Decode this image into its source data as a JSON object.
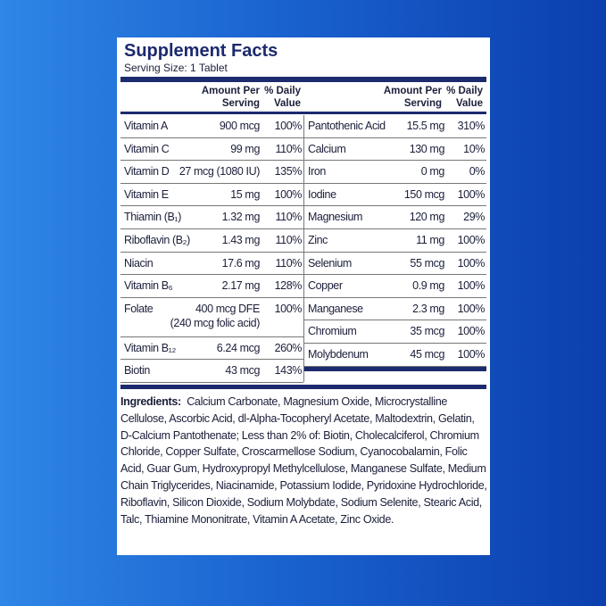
{
  "label": {
    "title": "Supplement Facts",
    "serving_size": "Serving Size: 1 Tablet",
    "header": {
      "amount": "Amount Per Serving",
      "daily_value": "% Daily Value"
    },
    "left_rows": [
      {
        "name": "Vitamin A",
        "amount": "900 mcg",
        "dv": "100%"
      },
      {
        "name": "Vitamin C",
        "amount": "99 mg",
        "dv": "110%"
      },
      {
        "name": "Vitamin D",
        "amount": "27 mcg (1080 IU)",
        "dv": "135%"
      },
      {
        "name": "Vitamin E",
        "amount": "15 mg",
        "dv": "100%"
      },
      {
        "name": "Thiamin (B₁)",
        "amount": "1.32 mg",
        "dv": "110%"
      },
      {
        "name": "Riboflavin (B₂)",
        "amount": "1.43 mg",
        "dv": "110%"
      },
      {
        "name": "Niacin",
        "amount": "17.6 mg",
        "dv": "110%"
      },
      {
        "name": "Vitamin B₆",
        "amount": "2.17 mg",
        "dv": "128%"
      },
      {
        "name": "Folate",
        "amount": "400 mcg DFE",
        "note": "(240 mcg folic acid)",
        "dv": "100%"
      },
      {
        "name": "Vitamin B₁₂",
        "amount": "6.24 mcg",
        "dv": "260%"
      },
      {
        "name": "Biotin",
        "amount": "43 mcg",
        "dv": "143%"
      }
    ],
    "right_rows": [
      {
        "name": "Pantothenic Acid",
        "amount": "15.5 mg",
        "dv": "310%"
      },
      {
        "name": "Calcium",
        "amount": "130 mg",
        "dv": "10%"
      },
      {
        "name": "Iron",
        "amount": "0 mg",
        "dv": "0%"
      },
      {
        "name": "Iodine",
        "amount": "150 mcg",
        "dv": "100%"
      },
      {
        "name": "Magnesium",
        "amount": "120 mg",
        "dv": "29%"
      },
      {
        "name": "Zinc",
        "amount": "11 mg",
        "dv": "100%"
      },
      {
        "name": "Selenium",
        "amount": "55 mcg",
        "dv": "100%"
      },
      {
        "name": "Copper",
        "amount": "0.9 mg",
        "dv": "100%"
      },
      {
        "name": "Manganese",
        "amount": "2.3 mg",
        "dv": "100%"
      },
      {
        "name": "Chromium",
        "amount": "35 mcg",
        "dv": "100%"
      },
      {
        "name": "Molybdenum",
        "amount": "45 mcg",
        "dv": "100%"
      }
    ],
    "ingredients_label": "Ingredients:",
    "ingredients": "Calcium Carbonate, Magnesium Oxide, Microcrystalline Cellulose, Ascorbic Acid, dl-Alpha-Tocopheryl Acetate, Maltodextrin, Gelatin, D-Calcium Pantothenate; Less than 2% of: Biotin, Cholecalciferol, Chromium Chloride, Copper Sulfate, Croscarmellose Sodium, Cyanocobalamin, Folic Acid, Guar Gum, Hydroxypropyl Methylcellulose, Manganese Sulfate, Medium Chain Triglycerides, Niacinamide, Potassium Iodide, Pyridoxine Hydrochloride, Riboflavin, Silicon Dioxide, Sodium Molybdate, Sodium Selenite, Stearic Acid, Talc, Thiamine Mononitrate, Vitamin A Acetate, Zinc Oxide."
  }
}
